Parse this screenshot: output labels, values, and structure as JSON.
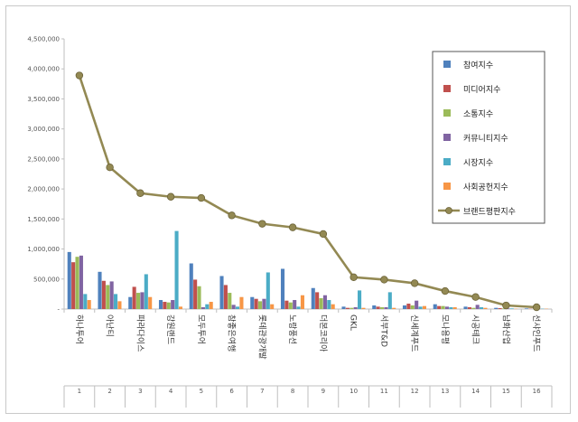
{
  "chart_data": {
    "type": "bar",
    "title": "",
    "xlabel": "",
    "ylabel": "",
    "ylim": [
      0,
      4500000
    ],
    "yticks": [
      "-",
      "500,000",
      "1,000,000",
      "1,500,000",
      "2,000,000",
      "2,500,000",
      "3,000,000",
      "3,500,000",
      "4,000,000",
      "4,500,000"
    ],
    "grid": false,
    "legend_position": "top-right",
    "categories": [
      "하나투어",
      "아난티",
      "파라다이스",
      "강원랜드",
      "모두투어",
      "참좋은여행",
      "롯데관광개발",
      "노랑풍선",
      "더본코리아",
      "GKL",
      "서부T&D",
      "신세계푸드",
      "모나용평",
      "시공테크",
      "남화산업",
      "선샤인푸드"
    ],
    "indices": [
      "1",
      "2",
      "3",
      "4",
      "5",
      "6",
      "7",
      "8",
      "9",
      "10",
      "11",
      "12",
      "13",
      "14",
      "15",
      "16"
    ],
    "series": [
      {
        "name": "참여지수",
        "color": "#4f81bd",
        "kind": "bar",
        "values": [
          950000,
          620000,
          200000,
          150000,
          760000,
          550000,
          200000,
          670000,
          350000,
          40000,
          60000,
          60000,
          80000,
          40000,
          20000,
          10000
        ]
      },
      {
        "name": "미디어지수",
        "color": "#c0504d",
        "kind": "bar",
        "values": [
          780000,
          470000,
          370000,
          120000,
          490000,
          400000,
          170000,
          140000,
          280000,
          20000,
          40000,
          90000,
          50000,
          30000,
          15000,
          5000
        ]
      },
      {
        "name": "소통지수",
        "color": "#9bbb59",
        "kind": "bar",
        "values": [
          870000,
          400000,
          270000,
          110000,
          380000,
          270000,
          130000,
          110000,
          180000,
          20000,
          30000,
          60000,
          50000,
          20000,
          10000,
          5000
        ]
      },
      {
        "name": "커뮤니티지수",
        "color": "#8064a2",
        "kind": "bar",
        "values": [
          890000,
          460000,
          280000,
          150000,
          30000,
          70000,
          170000,
          150000,
          230000,
          30000,
          30000,
          140000,
          40000,
          70000,
          10000,
          5000
        ]
      },
      {
        "name": "시장지수",
        "color": "#4bacc6",
        "kind": "bar",
        "values": [
          250000,
          250000,
          580000,
          1300000,
          80000,
          40000,
          610000,
          40000,
          150000,
          310000,
          280000,
          40000,
          30000,
          30000,
          10000,
          5000
        ]
      },
      {
        "name": "사회공헌지수",
        "color": "#f79646",
        "kind": "bar",
        "values": [
          150000,
          130000,
          200000,
          40000,
          120000,
          200000,
          80000,
          230000,
          80000,
          20000,
          20000,
          50000,
          30000,
          20000,
          5000,
          5000
        ]
      },
      {
        "name": "브랜드평판지수",
        "color": "#938953",
        "kind": "line",
        "values": [
          3890000,
          2360000,
          1930000,
          1870000,
          1850000,
          1560000,
          1420000,
          1360000,
          1250000,
          530000,
          490000,
          430000,
          300000,
          200000,
          60000,
          30000
        ]
      }
    ]
  }
}
